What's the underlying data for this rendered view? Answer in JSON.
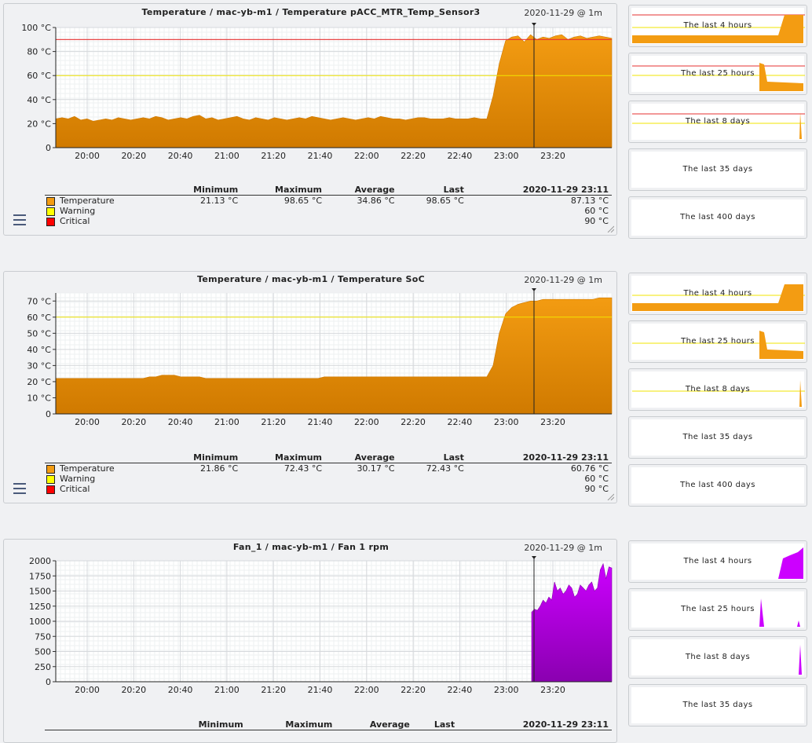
{
  "colors": {
    "temp_fill": "#f39c12",
    "temp_dark": "#d07a00",
    "fan_fill": "#cc00ff",
    "fan_dark": "#8a00b0",
    "warn": "#ffff00",
    "crit": "#ff0000"
  },
  "legend_headers": [
    "Minimum",
    "Maximum",
    "Average",
    "Last",
    "2020-11-29 23:11"
  ],
  "graphs": [
    {
      "title": "Temperature / mac-yb-m1 / Temperature pACC_MTR_Temp_Sensor3",
      "date": "2020-11-29 @ 1m",
      "y_ticks": [
        "100 °C",
        "80 °C",
        "60 °C",
        "40 °C",
        "20 °C",
        "0"
      ],
      "x_ticks": [
        "20:00",
        "20:20",
        "20:40",
        "21:00",
        "21:20",
        "21:40",
        "22:00",
        "22:20",
        "22:40",
        "23:00",
        "23:20"
      ],
      "legend": [
        {
          "name": "Temperature",
          "min": "21.13 °C",
          "max": "98.65 °C",
          "avg": "34.86 °C",
          "last": "98.65 °C",
          "cur": "87.13 °C",
          "color": "#f39c12"
        },
        {
          "name": "Warning",
          "cur": "60 °C",
          "color": "#ffff00"
        },
        {
          "name": "Critical",
          "cur": "90 °C",
          "color": "#ff0000"
        }
      ],
      "chart_data": {
        "type": "area",
        "ylim": [
          0,
          100
        ],
        "warning": 60,
        "critical": 90,
        "series": [
          {
            "name": "Temperature",
            "values": [
              24,
              25,
              24,
              26,
              23,
              24,
              22,
              23,
              24,
              23,
              25,
              24,
              23,
              24,
              25,
              24,
              26,
              25,
              23,
              24,
              25,
              24,
              26,
              27,
              24,
              25,
              23,
              24,
              25,
              26,
              24,
              23,
              25,
              24,
              23,
              25,
              24,
              23,
              24,
              25,
              24,
              26,
              25,
              24,
              23,
              24,
              25,
              24,
              23,
              24,
              25,
              24,
              26,
              25,
              24,
              24,
              23,
              24,
              25,
              25,
              24,
              24,
              24,
              25,
              24,
              24,
              24,
              25,
              24,
              24,
              43,
              70,
              89,
              92,
              93,
              88,
              94,
              90,
              92,
              91,
              93,
              94,
              90,
              92,
              93,
              91,
              92,
              93,
              92,
              91
            ]
          }
        ]
      }
    },
    {
      "title": "Temperature / mac-yb-m1 / Temperature SoC",
      "date": "2020-11-29 @ 1m",
      "y_ticks": [
        "70 °C",
        "60 °C",
        "50 °C",
        "40 °C",
        "30 °C",
        "20 °C",
        "10 °C",
        "0"
      ],
      "x_ticks": [
        "20:00",
        "20:20",
        "20:40",
        "21:00",
        "21:20",
        "21:40",
        "22:00",
        "22:20",
        "22:40",
        "23:00",
        "23:20"
      ],
      "legend": [
        {
          "name": "Temperature",
          "min": "21.86 °C",
          "max": "72.43 °C",
          "avg": "30.17 °C",
          "last": "72.43 °C",
          "cur": "60.76 °C",
          "color": "#f39c12"
        },
        {
          "name": "Warning",
          "cur": "60 °C",
          "color": "#ffff00"
        },
        {
          "name": "Critical",
          "cur": "90 °C",
          "color": "#ff0000"
        }
      ],
      "chart_data": {
        "type": "area",
        "ylim": [
          0,
          75
        ],
        "warning": 60,
        "critical": null,
        "series": [
          {
            "name": "Temperature",
            "values": [
              22,
              22,
              22,
              22,
              22,
              22,
              22,
              22,
              22,
              22,
              22,
              22,
              22,
              22,
              22,
              23,
              23,
              24,
              24,
              24,
              23,
              23,
              23,
              23,
              22,
              22,
              22,
              22,
              22,
              22,
              22,
              22,
              22,
              22,
              22,
              22,
              22,
              22,
              22,
              22,
              22,
              22,
              22,
              23,
              23,
              23,
              23,
              23,
              23,
              23,
              23,
              23,
              23,
              23,
              23,
              23,
              23,
              23,
              23,
              23,
              23,
              23,
              23,
              23,
              23,
              23,
              23,
              23,
              23,
              23,
              30,
              50,
              62,
              66,
              68,
              69,
              70,
              70,
              71,
              71,
              71,
              71,
              71,
              71,
              71,
              71,
              71,
              72,
              72,
              72
            ]
          }
        ]
      }
    },
    {
      "title": "Fan_1 / mac-yb-m1 / Fan 1 rpm",
      "date": "2020-11-29 @ 1m",
      "y_ticks": [
        "2000",
        "1750",
        "1500",
        "1250",
        "1000",
        "750",
        "500",
        "250",
        "0"
      ],
      "x_ticks": [
        "20:00",
        "20:20",
        "20:40",
        "21:00",
        "21:20",
        "21:40",
        "22:00",
        "22:20",
        "22:40",
        "23:00",
        "23:20"
      ],
      "legend_headers_row": [
        "Minimum",
        "Maximum",
        "Average",
        "Last",
        "2020-11-29 23:11"
      ],
      "chart_data": {
        "type": "area",
        "ylim": [
          0,
          2000
        ],
        "series": [
          {
            "name": "Fan 1 rpm",
            "values": [
              1150,
              1200,
              1180,
              1250,
              1350,
              1300,
              1400,
              1350,
              1650,
              1500,
              1550,
              1450,
              1500,
              1600,
              1550,
              1400,
              1450,
              1600,
              1550,
              1500,
              1600,
              1650,
              1500,
              1550,
              1850,
              1950,
              1700,
              1900,
              1880
            ]
          }
        ]
      }
    }
  ],
  "thumbs": [
    [
      "The last 4 hours",
      "The last 25 hours",
      "The last 8 days",
      "The last 35 days",
      "The last 400 days"
    ],
    [
      "The last 4 hours",
      "The last 25 hours",
      "The last 8 days",
      "The last 35 days",
      "The last 400 days"
    ],
    [
      "The last 4 hours",
      "The last 25 hours",
      "The last 8 days",
      "The last 35 days"
    ]
  ]
}
